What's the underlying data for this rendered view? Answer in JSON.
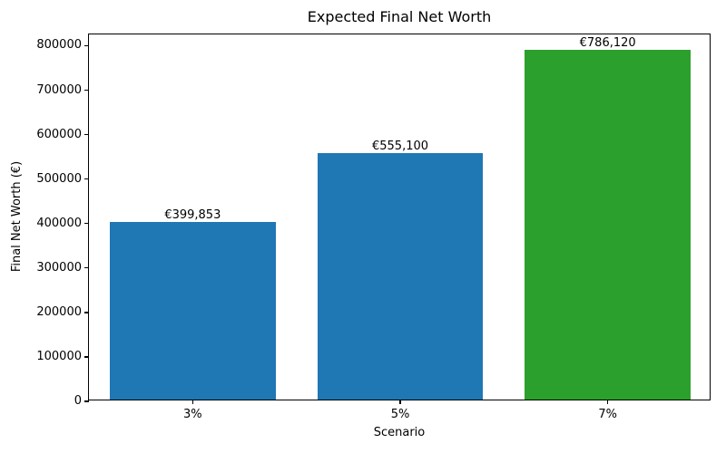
{
  "chart_data": {
    "type": "bar",
    "title": "Expected Final Net Worth",
    "xlabel": "Scenario",
    "ylabel": "Final Net Worth (€)",
    "categories": [
      "3%",
      "5%",
      "7%"
    ],
    "values": [
      399853,
      555100,
      786120
    ],
    "bar_labels": [
      "€399,853",
      "€555,100",
      "€786,120"
    ],
    "bar_colors": [
      "#1f77b4",
      "#1f77b4",
      "#2ca02c"
    ],
    "ylim": [
      0,
      825426
    ],
    "yticks": [
      0,
      100000,
      200000,
      300000,
      400000,
      500000,
      600000,
      700000,
      800000
    ],
    "grid": false,
    "legend": null,
    "colors": {
      "blue_bar": "#1f77b4",
      "green_bar": "#2ca02c",
      "axis": "#000000",
      "background": "#ffffff"
    }
  }
}
